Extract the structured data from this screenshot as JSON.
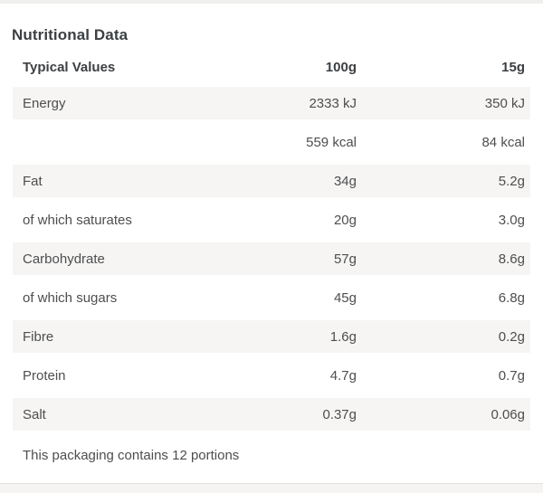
{
  "colors": {
    "row_alt_bg": "#f6f5f3",
    "page_bg": "#ffffff",
    "bottom_strip_bg": "#f5f4f2",
    "divider": "#e2e1de",
    "heading_text": "#3c4043",
    "body_text": "#4d4e50"
  },
  "section": {
    "title": "Nutritional Data",
    "table": {
      "headers": [
        "Typical Values",
        "100g",
        "15g"
      ],
      "rows": [
        {
          "label": "Energy",
          "per100g": "2333 kJ",
          "per15g": "350 kJ"
        },
        {
          "label": "",
          "per100g": "559 kcal",
          "per15g": "84 kcal"
        },
        {
          "label": "Fat",
          "per100g": "34g",
          "per15g": "5.2g"
        },
        {
          "label": "of which saturates",
          "per100g": "20g",
          "per15g": "3.0g"
        },
        {
          "label": "Carbohydrate",
          "per100g": "57g",
          "per15g": "8.6g"
        },
        {
          "label": "of which sugars",
          "per100g": "45g",
          "per15g": "6.8g"
        },
        {
          "label": "Fibre",
          "per100g": "1.6g",
          "per15g": "0.2g"
        },
        {
          "label": "Protein",
          "per100g": "4.7g",
          "per15g": "0.7g"
        },
        {
          "label": "Salt",
          "per100g": "0.37g",
          "per15g": "0.06g"
        }
      ],
      "note": "This packaging contains 12 portions"
    }
  }
}
